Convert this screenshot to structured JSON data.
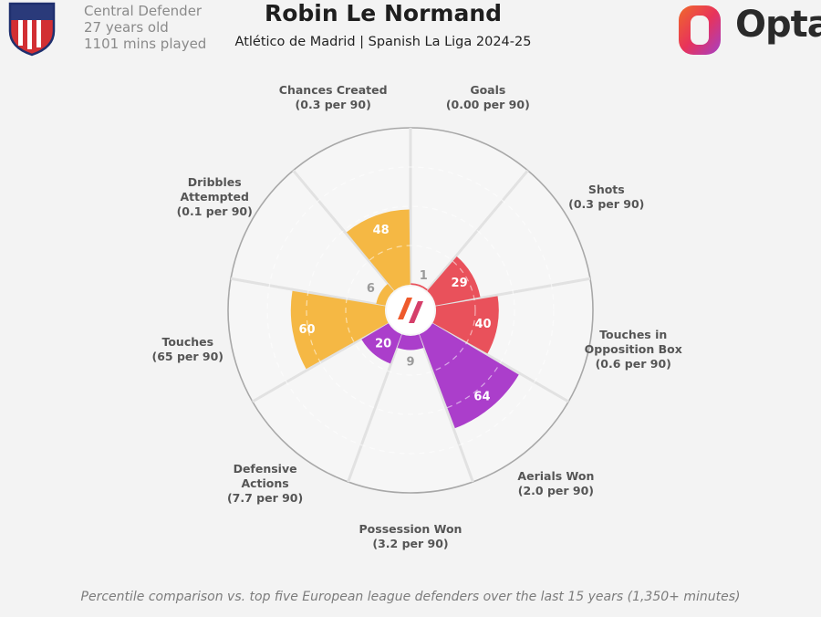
{
  "player": {
    "position": "Central Defender",
    "age": "27 years old",
    "minutes": "1101 mins played",
    "name": "Robin Le Normand",
    "subtitle": "Atlético de Madrid | Spanish La Liga 2024-25"
  },
  "brand": {
    "name": "Opta"
  },
  "footnote": "Percentile comparison vs. top five European league defenders over the last 15 years (1,350+ minutes)",
  "colors": {
    "attacking": "#e9515b",
    "aerial": "#ab3ecb",
    "possession": "#f5b844",
    "background": "#f3f3f3",
    "grid": "#e4e4e4"
  },
  "chart_data": {
    "type": "polar-bar",
    "scale_max": 100,
    "categories": [
      {
        "label_lines": [
          "Goals"
        ],
        "per90": "(0.00 per 90)",
        "value": 1,
        "group": "attacking"
      },
      {
        "label_lines": [
          "Shots"
        ],
        "per90": "(0.3 per 90)",
        "value": 29,
        "group": "attacking"
      },
      {
        "label_lines": [
          "Touches in",
          "Opposition Box"
        ],
        "per90": "(0.6 per 90)",
        "value": 40,
        "group": "attacking"
      },
      {
        "label_lines": [
          "Aerials Won"
        ],
        "per90": "(2.0 per 90)",
        "value": 64,
        "group": "aerial"
      },
      {
        "label_lines": [
          "Possession Won"
        ],
        "per90": "(3.2 per 90)",
        "value": 9,
        "group": "aerial"
      },
      {
        "label_lines": [
          "Defensive",
          "Actions"
        ],
        "per90": "(7.7 per 90)",
        "value": 20,
        "group": "aerial"
      },
      {
        "label_lines": [
          "Touches"
        ],
        "per90": "(65 per 90)",
        "value": 60,
        "group": "possession"
      },
      {
        "label_lines": [
          "Dribbles",
          "Attempted"
        ],
        "per90": "(0.1 per 90)",
        "value": 6,
        "group": "possession"
      },
      {
        "label_lines": [
          "Chances Created"
        ],
        "per90": "(0.3 per 90)",
        "value": 48,
        "group": "possession"
      }
    ]
  }
}
